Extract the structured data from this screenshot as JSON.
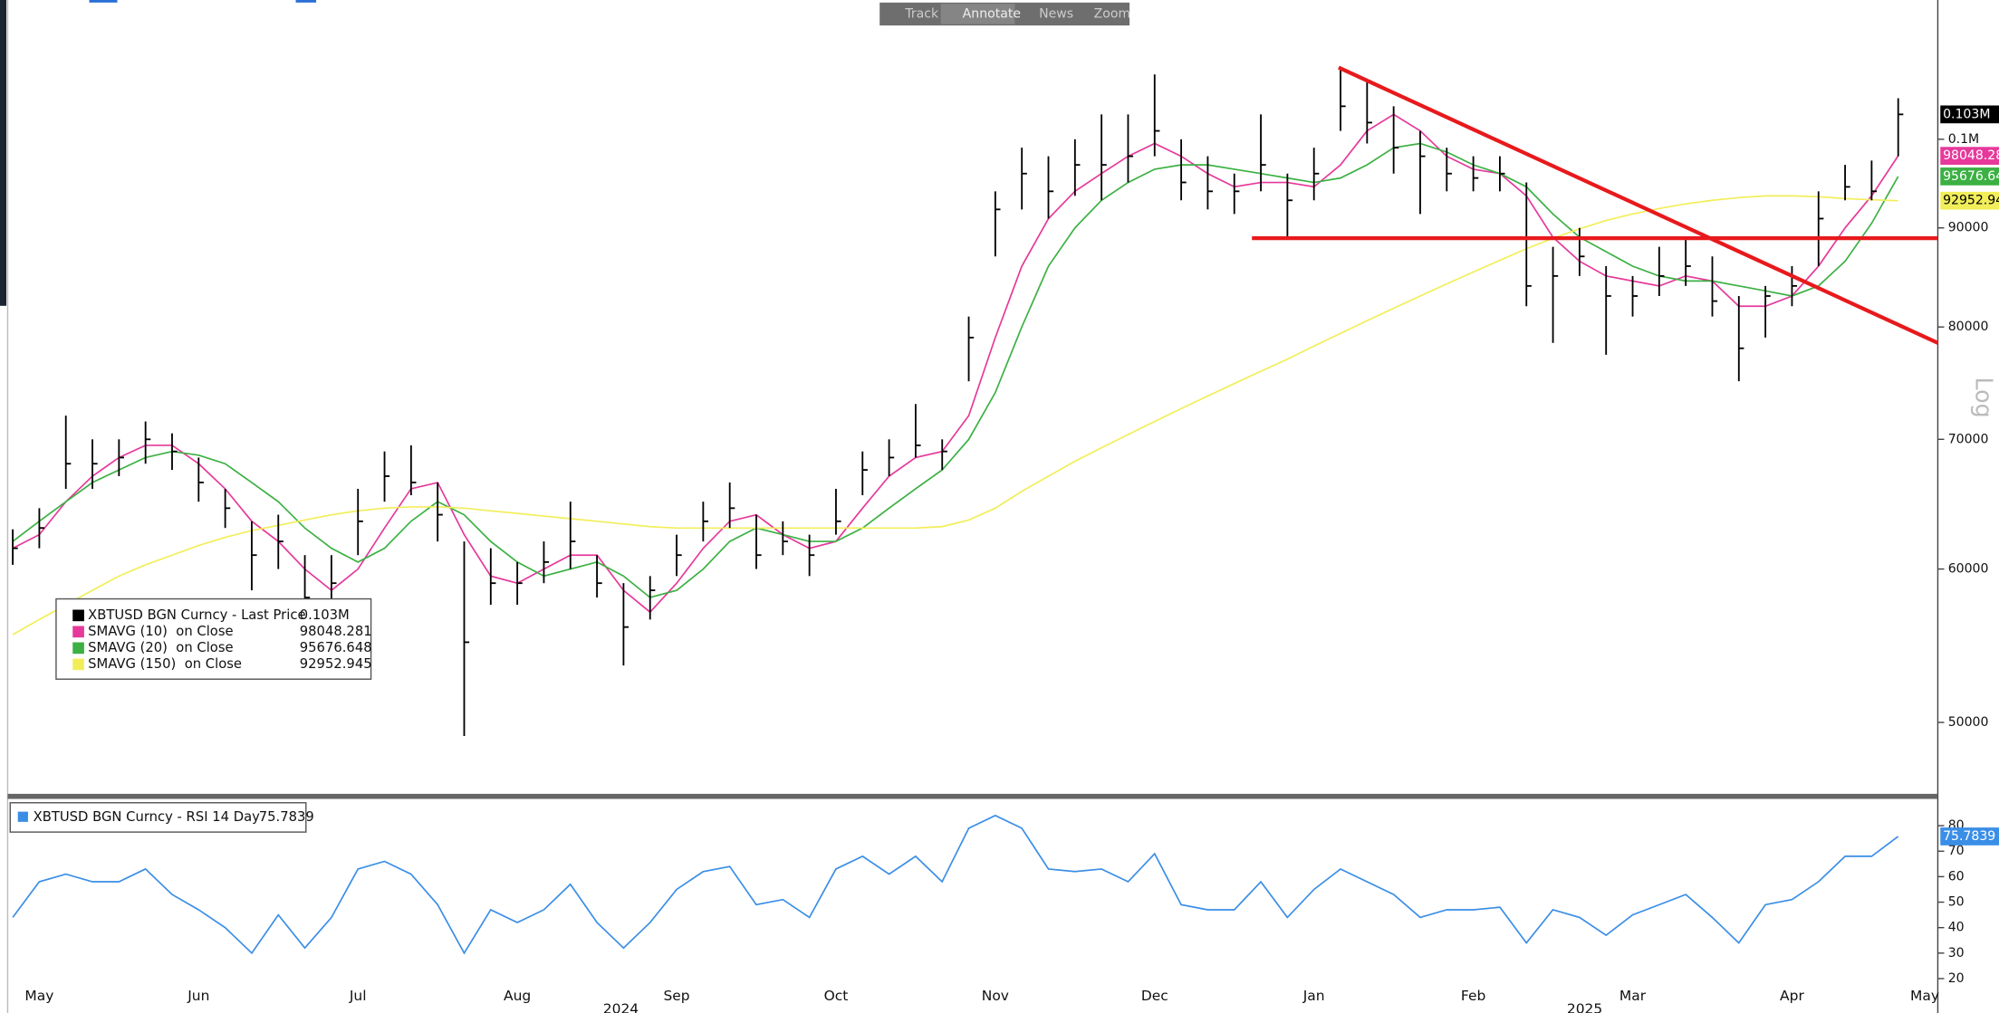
{
  "toolbar": {
    "buttons": [
      "Track",
      "Annotate",
      "News",
      "Zoom"
    ]
  },
  "chart_data": [
    {
      "type": "ohlc",
      "name": "XBTUSD BGN Curncy - Last Price",
      "color": "#000000",
      "last_label": "0.103M",
      "high": [
        62900,
        64500,
        72000,
        70000,
        70000,
        71500,
        70500,
        68500,
        66000,
        63500,
        64000,
        61000,
        61000,
        66000,
        69000,
        69500,
        66500,
        62000,
        61500,
        60500,
        62000,
        65000,
        61000,
        59000,
        59500,
        62500,
        65000,
        66500,
        64000,
        63500,
        62500,
        66000,
        69000,
        70000,
        73000,
        70000,
        81000,
        94000,
        99000,
        98000,
        100000,
        103000,
        103000,
        108000,
        100000,
        98000,
        96000,
        103000,
        96000,
        99000,
        109000,
        107000,
        104000,
        101000,
        99000,
        98000,
        98000,
        95000,
        88000,
        90000,
        86000,
        85000,
        88000,
        89000,
        87000,
        83000,
        84000,
        86000,
        94000,
        97000,
        97500,
        105000,
        null
      ],
      "low": [
        60300,
        61500,
        66000,
        66000,
        67000,
        68000,
        67500,
        65000,
        63000,
        58500,
        60000,
        56800,
        57500,
        61000,
        65000,
        65500,
        62000,
        49200,
        57500,
        57500,
        59000,
        60000,
        58000,
        53500,
        56500,
        59500,
        62000,
        63000,
        60000,
        61000,
        59500,
        62500,
        65500,
        67000,
        68500,
        67500,
        75000,
        87000,
        92000,
        91000,
        93500,
        93000,
        95000,
        98000,
        93000,
        92000,
        91500,
        94000,
        89000,
        93000,
        101000,
        99500,
        96000,
        91500,
        94000,
        94000,
        94000,
        82000,
        78500,
        85000,
        77400,
        81000,
        83000,
        84000,
        81000,
        75000,
        79000,
        82000,
        86000,
        93000,
        93000,
        98000,
        null
      ],
      "close": [
        61500,
        63000,
        68000,
        68000,
        68500,
        70000,
        69000,
        66500,
        64500,
        61000,
        62000,
        58000,
        59000,
        63500,
        67000,
        66500,
        64000,
        55000,
        59000,
        59000,
        60500,
        62000,
        59000,
        56000,
        58500,
        61000,
        63500,
        64500,
        61000,
        62000,
        61000,
        63500,
        67500,
        68500,
        69500,
        69000,
        79000,
        92000,
        96000,
        94000,
        97000,
        97000,
        98000,
        101000,
        95000,
        94000,
        94000,
        97000,
        93000,
        96000,
        104000,
        102000,
        99000,
        98000,
        96000,
        95500,
        96000,
        84000,
        85000,
        87000,
        83000,
        83000,
        85000,
        86000,
        82500,
        78000,
        83000,
        84000,
        91000,
        94500,
        94000,
        103000,
        null
      ],
      "series": [
        {
          "name": "SMAVG (10)  on Close",
          "color": "#e6399b",
          "tag_label": "98048.28",
          "values": [
            61500,
            62500,
            65000,
            67000,
            68500,
            69500,
            69500,
            68000,
            66000,
            63500,
            62000,
            60000,
            58500,
            60000,
            63000,
            66000,
            66500,
            62500,
            59500,
            59000,
            60000,
            61000,
            61000,
            58500,
            57000,
            59000,
            61500,
            63500,
            64000,
            62500,
            61500,
            62000,
            64500,
            67000,
            68500,
            69000,
            72000,
            79000,
            86000,
            91000,
            94000,
            96000,
            98000,
            99500,
            98000,
            96000,
            94500,
            95000,
            95000,
            94500,
            97000,
            101000,
            103000,
            101000,
            98000,
            96500,
            96000,
            93500,
            89000,
            86500,
            85000,
            84500,
            84000,
            85000,
            84500,
            82000,
            82000,
            83000,
            86000,
            90000,
            93500,
            98048.281,
            null
          ]
        },
        {
          "name": "SMAVG (20)  on Close",
          "color": "#3cb043",
          "tag_label": "95676.64",
          "values": [
            62000,
            63500,
            65000,
            66500,
            67500,
            68500,
            69000,
            68700,
            68000,
            66500,
            65000,
            63000,
            61500,
            60500,
            61500,
            63500,
            65000,
            64000,
            62000,
            60500,
            59500,
            60000,
            60500,
            59500,
            58000,
            58500,
            60000,
            62000,
            63000,
            62500,
            62000,
            62000,
            63000,
            64500,
            66000,
            67500,
            70000,
            74000,
            80000,
            86000,
            90000,
            93000,
            95000,
            96500,
            97000,
            97000,
            96500,
            96000,
            95500,
            95000,
            95500,
            97000,
            99000,
            99500,
            98500,
            97000,
            96000,
            94500,
            91500,
            89000,
            87500,
            86000,
            85000,
            84500,
            84500,
            84000,
            83500,
            83000,
            84000,
            86500,
            90500,
            95676.648,
            null
          ]
        },
        {
          "name": "SMAVG (150)  on Close",
          "color": "#f2ee5a",
          "tag_label": "92952.94",
          "values": [
            55500,
            56500,
            57500,
            58500,
            59500,
            60300,
            61000,
            61700,
            62300,
            62800,
            63200,
            63600,
            64000,
            64300,
            64500,
            64600,
            64600,
            64500,
            64300,
            64100,
            63900,
            63700,
            63500,
            63300,
            63100,
            63000,
            63000,
            63000,
            63000,
            63000,
            63000,
            63000,
            63000,
            63000,
            63000,
            63100,
            63600,
            64500,
            65800,
            67000,
            68200,
            69300,
            70400,
            71500,
            72600,
            73700,
            74800,
            75900,
            77000,
            78200,
            79400,
            80600,
            81800,
            83000,
            84200,
            85400,
            86600,
            87800,
            88900,
            89900,
            90800,
            91500,
            92100,
            92600,
            93000,
            93300,
            93500,
            93500,
            93400,
            93200,
            93050,
            92952.945,
            null
          ]
        }
      ],
      "trend_lines": [
        {
          "color": "#e8191c",
          "values": [
            108900,
            78500
          ]
        },
        {
          "color": "#e8191c",
          "values": [
            88900,
            88900
          ]
        }
      ],
      "ylim": [
        46000,
        118000
      ],
      "yticks": [
        50000,
        60000,
        70000,
        80000,
        90000,
        {
          "value": 100000,
          "label": "0.1M"
        }
      ],
      "log_scale": true,
      "axis_label": "Log",
      "grid": false,
      "legend_position": "lower left"
    },
    {
      "type": "line",
      "name": "XBTUSD BGN Curncy - RSI 14 Day",
      "color": "#3a8ee6",
      "categories": [
        null,
        "May",
        null,
        null,
        null,
        null,
        null,
        "Jun",
        null,
        null,
        null,
        null,
        null,
        "Jul",
        null,
        null,
        null,
        null,
        null,
        "Aug",
        null,
        null,
        null,
        null,
        null,
        "Sep",
        null,
        null,
        null,
        null,
        null,
        "Oct",
        null,
        null,
        null,
        null,
        null,
        "Nov",
        null,
        null,
        null,
        null,
        null,
        "Dec",
        null,
        null,
        null,
        null,
        null,
        "Jan",
        null,
        null,
        null,
        null,
        null,
        "Feb",
        null,
        null,
        null,
        null,
        null,
        "Mar",
        null,
        null,
        null,
        null,
        null,
        "Apr",
        null,
        null,
        null,
        null,
        "May"
      ],
      "year_labels": [
        "2024",
        "2025"
      ],
      "values": [
        44,
        58,
        61,
        58,
        58,
        63,
        53,
        47,
        40,
        30,
        45,
        32,
        44,
        63,
        66,
        61,
        49,
        30,
        47,
        42,
        47,
        57,
        42,
        32,
        42,
        55,
        62,
        64,
        49,
        51,
        44,
        63,
        68,
        61,
        68,
        58,
        79,
        84,
        79,
        63,
        62,
        63,
        58,
        69,
        49,
        47,
        47,
        58,
        44,
        55,
        63,
        58,
        53,
        44,
        47,
        47,
        48,
        34,
        47,
        44,
        37,
        45,
        49,
        53,
        44,
        34,
        49,
        51,
        58,
        68,
        68,
        75.7839,
        null
      ],
      "ylim": [
        18,
        90
      ],
      "yticks": [
        20,
        30,
        40,
        50,
        60,
        70,
        80
      ],
      "grid": false,
      "legend_position": "upper left"
    }
  ]
}
